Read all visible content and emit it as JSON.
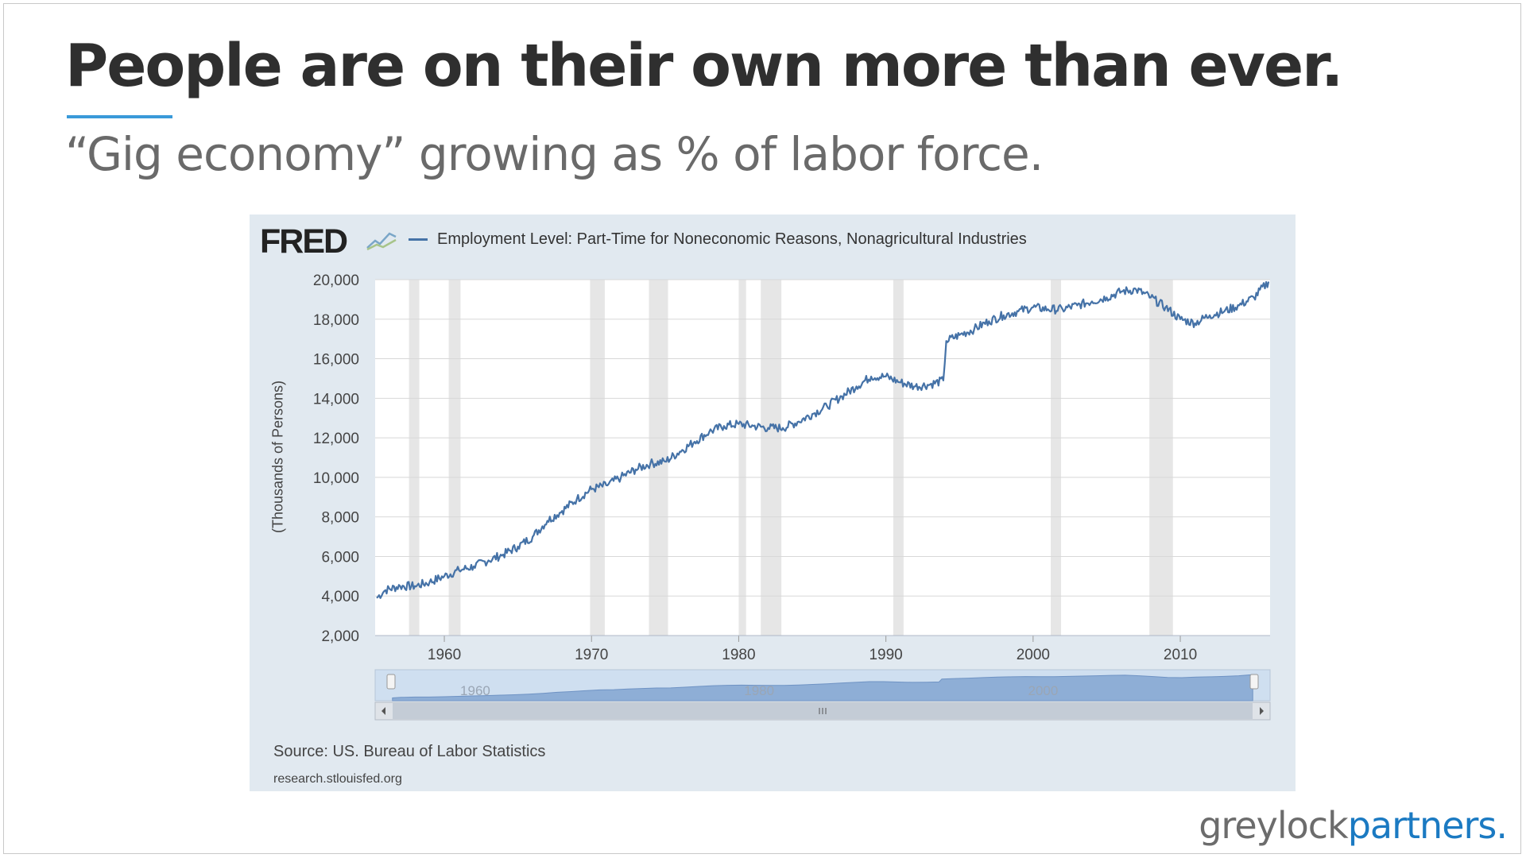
{
  "slide": {
    "title": "People are on their own more than ever.",
    "subtitle": "“Gig economy” growing as % of labor force.",
    "brand_left": "greylock",
    "brand_right": "partners.",
    "accent_color": "#3a9ad9"
  },
  "fred": {
    "logo": "FRED",
    "source": "Source: US. Bureau of Labor Statistics",
    "site": "research.stlouisfed.org"
  },
  "chart_data": {
    "type": "line",
    "title": "",
    "legend_position": "top-left",
    "xlabel": "",
    "ylabel": "(Thousands of Persons)",
    "xlim": [
      1955.3,
      2016.1
    ],
    "ylim": [
      2000,
      20000
    ],
    "grid": true,
    "x_ticks": [
      "1960",
      "1970",
      "1980",
      "1990",
      "2000",
      "2010"
    ],
    "y_ticks": [
      "2,000",
      "4,000",
      "6,000",
      "8,000",
      "10,000",
      "12,000",
      "14,000",
      "16,000",
      "18,000",
      "20,000"
    ],
    "navigator_labels": [
      "1960",
      "1980",
      "2000"
    ],
    "recessions": [
      [
        1957.6,
        1958.3
      ],
      [
        1960.3,
        1961.1
      ],
      [
        1969.9,
        1970.9
      ],
      [
        1973.9,
        1975.2
      ],
      [
        1980.0,
        1980.5
      ],
      [
        1981.5,
        1982.9
      ],
      [
        1990.5,
        1991.2
      ],
      [
        2001.2,
        2001.9
      ],
      [
        2007.9,
        2009.5
      ]
    ],
    "series": [
      {
        "name": "Employment Level: Part-Time for Noneconomic Reasons, Nonagricultural Industries",
        "color": "#4572a7",
        "x": [
          1955.4,
          1956,
          1957,
          1958,
          1959,
          1960,
          1961,
          1962,
          1963,
          1964,
          1965,
          1966,
          1967,
          1968,
          1969,
          1970,
          1971,
          1972,
          1973,
          1974,
          1975,
          1976,
          1977,
          1978,
          1979,
          1980,
          1981,
          1982,
          1983,
          1984,
          1985,
          1986,
          1987,
          1988,
          1989,
          1990,
          1991,
          1992,
          1993,
          1993.9,
          1994.1,
          1995,
          1996,
          1997,
          1998,
          1999,
          2000,
          2001,
          2002,
          2003,
          2004,
          2005,
          2006,
          2007,
          2008,
          2009,
          2010,
          2011,
          2012,
          2013,
          2014,
          2015,
          2016
        ],
        "y": [
          3900,
          4300,
          4500,
          4500,
          4700,
          5000,
          5300,
          5500,
          5800,
          6100,
          6500,
          7000,
          7800,
          8300,
          8900,
          9400,
          9600,
          10000,
          10400,
          10700,
          10800,
          11300,
          11800,
          12300,
          12600,
          12700,
          12600,
          12500,
          12500,
          12800,
          13200,
          13600,
          14100,
          14600,
          15100,
          15100,
          14800,
          14600,
          14700,
          14900,
          16900,
          17200,
          17500,
          17900,
          18200,
          18400,
          18600,
          18500,
          18500,
          18700,
          18900,
          19100,
          19400,
          19500,
          19100,
          18600,
          18000,
          17800,
          18200,
          18400,
          18700,
          19100,
          19900
        ]
      }
    ]
  }
}
